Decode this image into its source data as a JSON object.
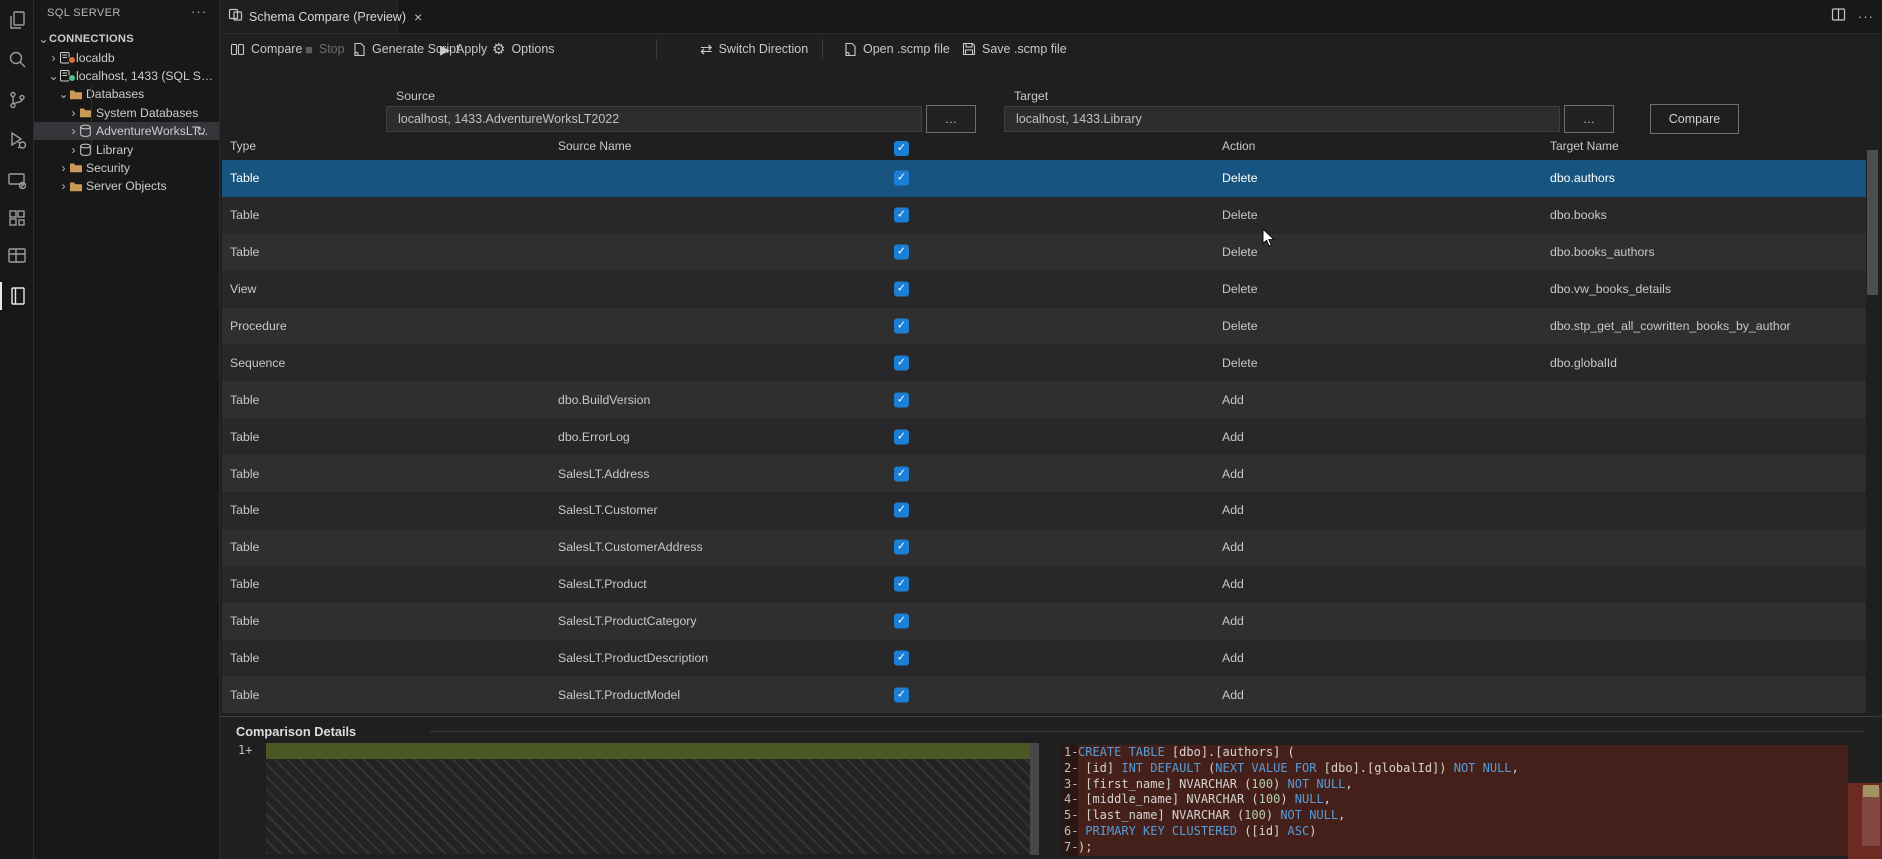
{
  "activity_bar": {
    "icons": [
      "explorer-icon",
      "search-icon",
      "source-control-icon",
      "run-and-debug-icon",
      "remote-explorer-icon",
      "extensions-icon",
      "table-designer-icon",
      "sql-server-icon"
    ]
  },
  "sidebar": {
    "title": "SQL SERVER",
    "more_label": "···",
    "tree": [
      {
        "label": "CONNECTIONS",
        "level": 0,
        "chev": "v",
        "icon": "",
        "root": true
      },
      {
        "label": "localdb",
        "level": 1,
        "chev": ">",
        "icon": "server-icon",
        "status": "#d9713d"
      },
      {
        "label": "localhost, 1433 (SQL Serv...",
        "level": 1,
        "chev": "v",
        "icon": "server-icon",
        "status": "#4cc38a"
      },
      {
        "label": "Databases",
        "level": 2,
        "chev": "v",
        "icon": "folder-icon"
      },
      {
        "label": "System Databases",
        "level": 3,
        "chev": ">",
        "icon": "folder-icon"
      },
      {
        "label": "AdventureWorksLT...",
        "level": 3,
        "chev": ">",
        "icon": "database-icon",
        "highlighted": true,
        "spinner": "↻"
      },
      {
        "label": "Library",
        "level": 3,
        "chev": ">",
        "icon": "database-icon"
      },
      {
        "label": "Security",
        "level": 2,
        "chev": ">",
        "icon": "folder-icon"
      },
      {
        "label": "Server Objects",
        "level": 2,
        "chev": ">",
        "icon": "folder-icon"
      }
    ]
  },
  "tab": {
    "title": "Schema Compare (Preview)",
    "close": "×"
  },
  "editor_actions": {
    "more": "···"
  },
  "toolbar": {
    "compare": "Compare",
    "stop": "Stop",
    "generate_script": "Generate Script",
    "apply": "Apply",
    "options": "Options",
    "switch_direction": "Switch Direction",
    "open_scmp": "Open .scmp file",
    "save_scmp": "Save .scmp file"
  },
  "compare_bar": {
    "source_label": "Source",
    "source_value": "localhost, 1433.AdventureWorksLT2022",
    "target_label": "Target",
    "target_value": "localhost, 1433.Library",
    "ellipsis": "…",
    "compare_button": "Compare"
  },
  "grid": {
    "columns": [
      "Type",
      "Source Name",
      "Action",
      "Target Name"
    ],
    "rows": [
      {
        "type": "Table",
        "source": "",
        "checked": true,
        "action": "Delete",
        "target": "dbo.authors",
        "selected": true
      },
      {
        "type": "Table",
        "source": "",
        "checked": true,
        "action": "Delete",
        "target": "dbo.books"
      },
      {
        "type": "Table",
        "source": "",
        "checked": true,
        "action": "Delete",
        "target": "dbo.books_authors"
      },
      {
        "type": "View",
        "source": "",
        "checked": true,
        "action": "Delete",
        "target": "dbo.vw_books_details"
      },
      {
        "type": "Procedure",
        "source": "",
        "checked": true,
        "action": "Delete",
        "target": "dbo.stp_get_all_cowritten_books_by_author"
      },
      {
        "type": "Sequence",
        "source": "",
        "checked": true,
        "action": "Delete",
        "target": "dbo.globalId"
      },
      {
        "type": "Table",
        "source": "dbo.BuildVersion",
        "checked": true,
        "action": "Add",
        "target": ""
      },
      {
        "type": "Table",
        "source": "dbo.ErrorLog",
        "checked": true,
        "action": "Add",
        "target": ""
      },
      {
        "type": "Table",
        "source": "SalesLT.Address",
        "checked": true,
        "action": "Add",
        "target": ""
      },
      {
        "type": "Table",
        "source": "SalesLT.Customer",
        "checked": true,
        "action": "Add",
        "target": ""
      },
      {
        "type": "Table",
        "source": "SalesLT.CustomerAddress",
        "checked": true,
        "action": "Add",
        "target": ""
      },
      {
        "type": "Table",
        "source": "SalesLT.Product",
        "checked": true,
        "action": "Add",
        "target": ""
      },
      {
        "type": "Table",
        "source": "SalesLT.ProductCategory",
        "checked": true,
        "action": "Add",
        "target": ""
      },
      {
        "type": "Table",
        "source": "SalesLT.ProductDescription",
        "checked": true,
        "action": "Add",
        "target": ""
      },
      {
        "type": "Table",
        "source": "SalesLT.ProductModel",
        "checked": true,
        "action": "Add",
        "target": ""
      }
    ]
  },
  "details": {
    "title": "Comparison Details",
    "left_lines": [
      {
        "num": "1",
        "marker": "+",
        "tokens": []
      }
    ],
    "right_lines": [
      {
        "num": "1",
        "marker": "-",
        "tokens": [
          [
            "CREATE TABLE ",
            "kw"
          ],
          [
            "[dbo].[authors] (",
            "df"
          ]
        ]
      },
      {
        "num": "2",
        "marker": "-",
        "tokens": [
          [
            " [id] ",
            "df"
          ],
          [
            "INT DEFAULT ",
            "kw"
          ],
          [
            "(",
            "df"
          ],
          [
            "NEXT VALUE FOR ",
            "kw"
          ],
          [
            "[dbo].[globalId]",
            "df"
          ],
          [
            ") ",
            "df"
          ],
          [
            "NOT NULL",
            "kw"
          ],
          [
            ",",
            "df"
          ]
        ]
      },
      {
        "num": "3",
        "marker": "-",
        "tokens": [
          [
            " [first_name] NVARCHAR (",
            "df"
          ],
          [
            "100",
            "num"
          ],
          [
            ") ",
            "df"
          ],
          [
            "NOT NULL",
            "kw"
          ],
          [
            ",",
            "df"
          ]
        ]
      },
      {
        "num": "4",
        "marker": "-",
        "tokens": [
          [
            " [middle_name] NVARCHAR (",
            "df"
          ],
          [
            "100",
            "num"
          ],
          [
            ") ",
            "df"
          ],
          [
            "NULL",
            "kw"
          ],
          [
            ",",
            "df"
          ]
        ]
      },
      {
        "num": "5",
        "marker": "-",
        "tokens": [
          [
            " [last_name] NVARCHAR (",
            "df"
          ],
          [
            "100",
            "num"
          ],
          [
            ") ",
            "df"
          ],
          [
            "NOT NULL",
            "kw"
          ],
          [
            ",",
            "df"
          ]
        ]
      },
      {
        "num": "6",
        "marker": "-",
        "tokens": [
          [
            " ",
            "df"
          ],
          [
            "PRIMARY KEY CLUSTERED ",
            "kw"
          ],
          [
            "([id] ",
            "df"
          ],
          [
            "ASC",
            "kw"
          ],
          [
            ")",
            "df"
          ]
        ]
      },
      {
        "num": "7",
        "marker": "-",
        "tokens": [
          [
            ");",
            "df"
          ]
        ]
      }
    ]
  },
  "colors": {
    "selection_blue": "#17547f",
    "checkbox_blue": "#1c7fd6",
    "status_green": "#4cc38a",
    "status_orange": "#d9713d",
    "diff_added_bg": "#4a5825",
    "diff_removed_bg": "#45201a",
    "code_keyword": "#569cd6",
    "code_number": "#b5cea8",
    "code_default": "#d4d4d4",
    "folder_tan": "#c79a58"
  }
}
